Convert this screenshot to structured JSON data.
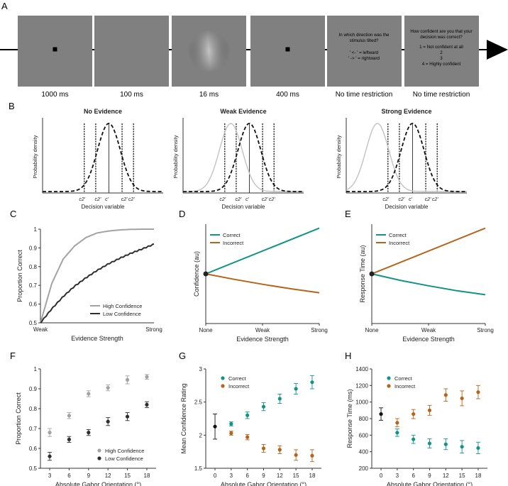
{
  "colors": {
    "teal": "#129386",
    "orange": "#b5641c",
    "gray": "#a3a3a3",
    "dark": "#2e2e2e",
    "screen": "#808080",
    "axis": "#333333"
  },
  "panels": {
    "A": "A",
    "B": "B",
    "C": "C",
    "D": "D",
    "E": "E",
    "F": "F",
    "G": "G",
    "H": "H"
  },
  "panel_a": {
    "screens": [
      {
        "kind": "fixation",
        "duration": "1000 ms"
      },
      {
        "kind": "blank",
        "duration": "100 ms"
      },
      {
        "kind": "gabor",
        "duration": "16 ms"
      },
      {
        "kind": "fixation",
        "duration": "400 ms"
      },
      {
        "kind": "direction",
        "duration": "No time restriction",
        "lines": [
          "In which direction was the",
          "stimulus tilted?",
          "' <- ' = leftward",
          "' -> ' = rightward"
        ]
      },
      {
        "kind": "confidence",
        "duration": "No time restriction",
        "lines": [
          "How confident are you that your",
          "decision was correct?",
          "1 = Not confident at all",
          "2",
          "3",
          "4 = Highly confident"
        ]
      }
    ]
  },
  "panel_b": {
    "ylabel": "Probability density",
    "xlabel": "Decision variable",
    "criterion_labels": [
      "c2'",
      "c2'",
      "c'",
      "c2'",
      "c2'"
    ],
    "plots": [
      {
        "title": "No Evidence"
      },
      {
        "title": "Weak Evidence"
      },
      {
        "title": "Strong Evidence"
      }
    ]
  },
  "chart_data": [
    {
      "id": "C",
      "type": "line",
      "ylabel": "Proportion Correct",
      "xlabel": "Evidence Strength",
      "xticks": [
        "Weak",
        "Strong"
      ],
      "yticks": [
        "0.5",
        "0.6",
        "0.7",
        "0.8",
        "0.9",
        "1"
      ],
      "ylim": [
        0.5,
        1.0
      ],
      "series": [
        {
          "name": "High Confidence",
          "x": [
            0,
            0.1,
            0.2,
            0.3,
            0.4,
            0.5,
            0.6,
            0.7,
            0.8,
            0.9,
            1.0
          ],
          "y": [
            0.5,
            0.71,
            0.84,
            0.91,
            0.955,
            0.98,
            0.99,
            0.996,
            0.999,
            1.0,
            1.0
          ]
        },
        {
          "name": "Low Confidence",
          "x": [
            0,
            0.1,
            0.2,
            0.3,
            0.4,
            0.5,
            0.6,
            0.7,
            0.8,
            0.9,
            1.0
          ],
          "y": [
            0.5,
            0.575,
            0.64,
            0.695,
            0.74,
            0.78,
            0.815,
            0.845,
            0.872,
            0.895,
            0.92
          ]
        }
      ]
    },
    {
      "id": "D",
      "type": "line",
      "ylabel": "Confidence (au)",
      "xlabel": "Evidence Strength",
      "xticks": [
        "None",
        "Weak",
        "Strong"
      ],
      "ylim": [
        0,
        1
      ],
      "series": [
        {
          "name": "Correct",
          "x": [
            0,
            1
          ],
          "y": [
            0.5,
            0.96
          ]
        },
        {
          "name": "Incorrect",
          "x": [
            0,
            0.25,
            0.5,
            0.75,
            1
          ],
          "y": [
            0.5,
            0.445,
            0.395,
            0.35,
            0.31
          ]
        }
      ]
    },
    {
      "id": "E",
      "type": "line",
      "ylabel": "Response Time (au)",
      "xlabel": "Evidence Strength",
      "xticks": [
        "None",
        "Weak",
        "Strong"
      ],
      "ylim": [
        0,
        1
      ],
      "series": [
        {
          "name": "Correct",
          "x": [
            0,
            0.25,
            0.5,
            0.75,
            1
          ],
          "y": [
            0.5,
            0.435,
            0.38,
            0.33,
            0.29
          ]
        },
        {
          "name": "Incorrect",
          "x": [
            0,
            1
          ],
          "y": [
            0.5,
            0.96
          ]
        }
      ]
    },
    {
      "id": "F",
      "type": "scatter",
      "ylabel": "Proportion Correct",
      "xlabel": "Absolute Gabor Orientation (°)",
      "categories": [
        "3",
        "6",
        "9",
        "12",
        "15",
        "18"
      ],
      "yticks": [
        "0.5",
        "0.6",
        "0.7",
        "0.8",
        "0.9",
        "1"
      ],
      "ylim": [
        0.5,
        1.0
      ],
      "series": [
        {
          "name": "High Confidence",
          "values": [
            0.68,
            0.765,
            0.875,
            0.905,
            0.945,
            0.96
          ],
          "err": [
            0.02,
            0.015,
            0.015,
            0.015,
            0.02,
            0.012
          ]
        },
        {
          "name": "Low Confidence",
          "values": [
            0.56,
            0.645,
            0.68,
            0.735,
            0.76,
            0.82
          ],
          "err": [
            0.02,
            0.015,
            0.015,
            0.02,
            0.02,
            0.015
          ]
        }
      ]
    },
    {
      "id": "G",
      "type": "scatter",
      "ylabel": "Mean Confidence Rating",
      "xlabel": "Absolute Gabor Orientation (°)",
      "categories": [
        "0",
        "3",
        "6",
        "9",
        "12",
        "15",
        "18"
      ],
      "yticks": [
        "1.5",
        "2",
        "2.5",
        "3"
      ],
      "ylim": [
        1.5,
        3.0
      ],
      "none_point": {
        "x": "0",
        "value": 2.13,
        "err": 0.19
      },
      "series": [
        {
          "name": "Correct",
          "x": [
            "3",
            "6",
            "9",
            "12",
            "15",
            "18"
          ],
          "values": [
            2.17,
            2.3,
            2.43,
            2.55,
            2.7,
            2.8
          ],
          "err": [
            0.03,
            0.05,
            0.06,
            0.07,
            0.08,
            0.1
          ]
        },
        {
          "name": "Incorrect",
          "x": [
            "3",
            "6",
            "9",
            "12",
            "15",
            "18"
          ],
          "values": [
            2.03,
            1.97,
            1.8,
            1.78,
            1.7,
            1.69
          ],
          "err": [
            0.03,
            0.04,
            0.06,
            0.06,
            0.08,
            0.09
          ]
        }
      ]
    },
    {
      "id": "H",
      "type": "scatter",
      "ylabel": "Response Time (ms)",
      "xlabel": "Absolute Gabor Orientation (°)",
      "categories": [
        "0",
        "3",
        "6",
        "9",
        "12",
        "15",
        "18"
      ],
      "yticks": [
        "200",
        "400",
        "600",
        "800",
        "1000",
        "1200",
        "1400"
      ],
      "ylim": [
        200,
        1400
      ],
      "none_point": {
        "x": "0",
        "value": 855,
        "err": 75
      },
      "series": [
        {
          "name": "Correct",
          "x": [
            "3",
            "6",
            "9",
            "12",
            "15",
            "18"
          ],
          "values": [
            630,
            550,
            500,
            490,
            460,
            445
          ],
          "err": [
            45,
            50,
            55,
            65,
            75,
            70
          ]
        },
        {
          "name": "Incorrect",
          "x": [
            "3",
            "6",
            "9",
            "12",
            "15",
            "18"
          ],
          "values": [
            750,
            855,
            900,
            1085,
            1045,
            1120
          ],
          "err": [
            50,
            55,
            60,
            75,
            90,
            80
          ]
        }
      ]
    }
  ]
}
